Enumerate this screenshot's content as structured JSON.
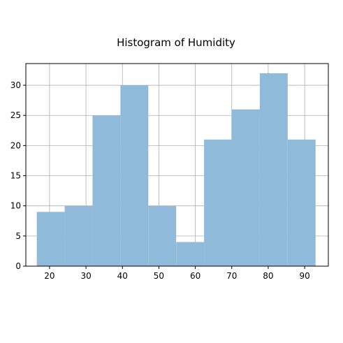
{
  "chart_data": {
    "type": "bar",
    "title": "Histogram of Humidity",
    "xlabel": "",
    "ylabel": "",
    "xlim": [
      13.5,
      96.5
    ],
    "ylim": [
      0,
      33.6
    ],
    "grid": true,
    "bins": [
      {
        "x0": 16.5,
        "x1": 24.15,
        "count": 9
      },
      {
        "x0": 24.15,
        "x1": 31.8,
        "count": 10
      },
      {
        "x0": 31.8,
        "x1": 39.45,
        "count": 25
      },
      {
        "x0": 39.45,
        "x1": 47.1,
        "count": 30
      },
      {
        "x0": 47.1,
        "x1": 54.75,
        "count": 10
      },
      {
        "x0": 54.75,
        "x1": 62.4,
        "count": 4
      },
      {
        "x0": 62.4,
        "x1": 70.05,
        "count": 21
      },
      {
        "x0": 70.05,
        "x1": 77.7,
        "count": 26
      },
      {
        "x0": 77.7,
        "x1": 85.35,
        "count": 32
      },
      {
        "x0": 85.35,
        "x1": 93.0,
        "count": 21
      }
    ],
    "x_ticks": [
      20,
      30,
      40,
      50,
      60,
      70,
      80,
      90
    ],
    "y_ticks": [
      0,
      5,
      10,
      15,
      20,
      25,
      30
    ],
    "bar_color": "#8fbad9"
  }
}
